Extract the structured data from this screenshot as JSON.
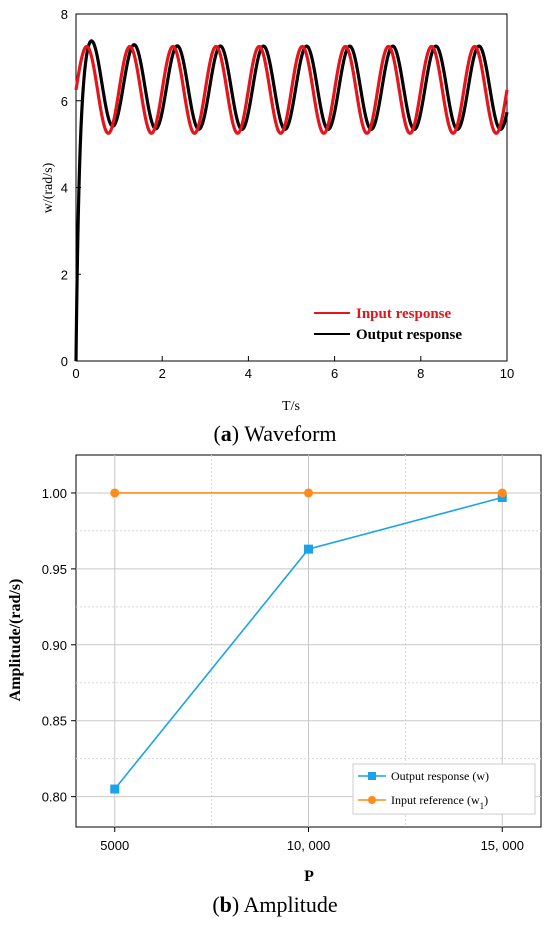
{
  "chart_data": [
    {
      "type": "line",
      "xlabel": "T/s",
      "ylabel": "w/(rad/s)",
      "xlim": [
        0,
        10
      ],
      "ylim": [
        0,
        8
      ],
      "xticks": [
        "0",
        "2",
        "4",
        "6",
        "8",
        "10"
      ],
      "yticks": [
        "0",
        "2",
        "4",
        "6",
        "8"
      ],
      "grid": false,
      "legend": "bottom-right",
      "series": [
        {
          "name": "Input response",
          "color": "#e8141c",
          "mean": 6.25,
          "amplitude": 1.0,
          "period": 1.0,
          "x": [
            0,
            0.25,
            0.5,
            0.75,
            1.0,
            10
          ],
          "y": [
            6.25,
            7.25,
            6.25,
            5.25,
            6.25,
            6.25
          ]
        },
        {
          "name": "Output response",
          "color": "#000000",
          "mean": 6.3,
          "amplitude": 0.96,
          "period": 1.0,
          "x": [
            0,
            0.1,
            0.2,
            0.35,
            0.7,
            10
          ],
          "y": [
            0,
            3.8,
            6.5,
            7.45,
            5.5,
            6.3
          ]
        }
      ]
    },
    {
      "type": "line",
      "xlabel": "P",
      "ylabel": "Amplitude/(rad/s)",
      "xlim": [
        4000,
        16000
      ],
      "ylim": [
        0.78,
        1.025
      ],
      "xticks": [
        "5000",
        "10, 000",
        "15, 000"
      ],
      "yticks": [
        "0.80",
        "0.85",
        "0.90",
        "0.95",
        "1.00"
      ],
      "grid": true,
      "legend": "bottom-right",
      "series": [
        {
          "name": "Output response (w)",
          "color": "#1aa3e8",
          "marker": "square",
          "x": [
            5000,
            10000,
            15000
          ],
          "y": [
            0.805,
            0.963,
            0.997
          ]
        },
        {
          "name": "Input reference (w",
          "name_sub": "1",
          "name_tail": ")",
          "color": "#ff8c1a",
          "marker": "circle",
          "x": [
            5000,
            10000,
            15000
          ],
          "y": [
            1.0,
            1.0,
            1.0
          ]
        }
      ]
    }
  ],
  "captions": {
    "a_letter": "a",
    "a_open": "(",
    "a_close": ") Waveform",
    "b_letter": "b",
    "b_open": "(",
    "b_close": ") Amplitude"
  }
}
